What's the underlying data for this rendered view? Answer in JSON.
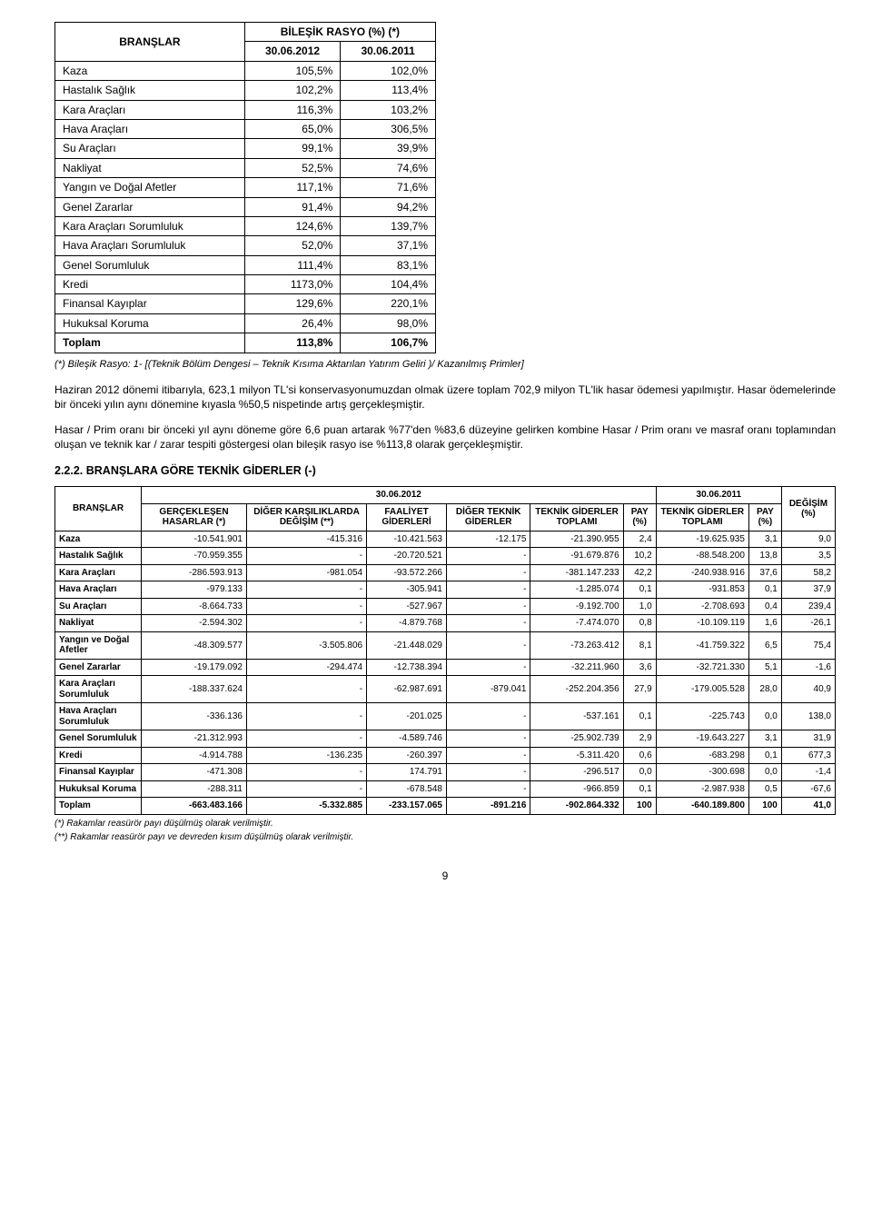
{
  "table1": {
    "header_branslar": "BRANŞLAR",
    "header_rasyo": "BİLEŞİK RASYO (%) (*)",
    "date1": "30.06.2012",
    "date2": "30.06.2011",
    "rows": [
      {
        "label": "Kaza",
        "v1": "105,5%",
        "v2": "102,0%",
        "bold": false
      },
      {
        "label": "Hastalık Sağlık",
        "v1": "102,2%",
        "v2": "113,4%",
        "bold": false
      },
      {
        "label": "Kara Araçları",
        "v1": "116,3%",
        "v2": "103,2%",
        "bold": false
      },
      {
        "label": "Hava Araçları",
        "v1": "65,0%",
        "v2": "306,5%",
        "bold": false
      },
      {
        "label": "Su Araçları",
        "v1": "99,1%",
        "v2": "39,9%",
        "bold": false
      },
      {
        "label": "Nakliyat",
        "v1": "52,5%",
        "v2": "74,6%",
        "bold": false
      },
      {
        "label": "Yangın ve Doğal Afetler",
        "v1": "117,1%",
        "v2": "71,6%",
        "bold": false
      },
      {
        "label": "Genel Zararlar",
        "v1": "91,4%",
        "v2": "94,2%",
        "bold": false
      },
      {
        "label": "Kara Araçları Sorumluluk",
        "v1": "124,6%",
        "v2": "139,7%",
        "bold": false
      },
      {
        "label": "Hava Araçları Sorumluluk",
        "v1": "52,0%",
        "v2": "37,1%",
        "bold": false
      },
      {
        "label": "Genel Sorumluluk",
        "v1": "111,4%",
        "v2": "83,1%",
        "bold": false
      },
      {
        "label": "Kredi",
        "v1": "1173,0%",
        "v2": "104,4%",
        "bold": false
      },
      {
        "label": "Finansal Kayıplar",
        "v1": "129,6%",
        "v2": "220,1%",
        "bold": false
      },
      {
        "label": "Hukuksal Koruma",
        "v1": "26,4%",
        "v2": "98,0%",
        "bold": false
      },
      {
        "label": "Toplam",
        "v1": "113,8%",
        "v2": "106,7%",
        "bold": true
      }
    ],
    "footnote": "(*) Bileşik Rasyo: 1- [(Teknik Bölüm Dengesi – Teknik Kısıma Aktarılan Yatırım Geliri )/ Kazanılmış Primler]"
  },
  "para1": "Haziran 2012 dönemi itibarıyla, 623,1 milyon TL'si konservasyonumuzdan olmak üzere toplam 702,9 milyon TL'lik hasar ödemesi yapılmıştır. Hasar ödemelerinde bir önceki yılın aynı dönemine kıyasla %50,5 nispetinde artış gerçekleşmiştir.",
  "para2": "Hasar / Prim oranı bir önceki yıl aynı döneme göre 6,6 puan artarak %77'den %83,6 düzeyine gelirken kombine Hasar / Prim oranı ve masraf oranı toplamından oluşan ve teknik kar / zarar tespiti göstergesi olan bileşik rasyo ise %113,8 olarak gerçekleşmiştir.",
  "section_title": "2.2.2. BRANŞLARA GÖRE TEKNİK GİDERLER (-)",
  "table2": {
    "h_branslar": "BRANŞLAR",
    "h_date1": "30.06.2012",
    "h_date2": "30.06.2011",
    "h_c1": "GERÇEKLEŞEN HASARLAR (*)",
    "h_c2": "DİĞER KARŞILIKLARDA DEĞİŞİM (**)",
    "h_c3": "FAALİYET GİDERLERİ",
    "h_c4": "DİĞER TEKNİK GİDERLER",
    "h_c5": "TEKNİK GİDERLER TOPLAMI",
    "h_c6": "PAY (%)",
    "h_c7": "TEKNİK GİDERLER TOPLAMI",
    "h_c8": "PAY (%)",
    "h_c9": "DEĞİŞİM (%)",
    "rows": [
      {
        "label": "Kaza",
        "c": [
          "-10.541.901",
          "-415.316",
          "-10.421.563",
          "-12.175",
          "-21.390.955",
          "2,4",
          "-19.625.935",
          "3,1",
          "9,0"
        ]
      },
      {
        "label": "Hastalık Sağlık",
        "c": [
          "-70.959.355",
          "-",
          "-20.720.521",
          "-",
          "-91.679.876",
          "10,2",
          "-88.548.200",
          "13,8",
          "3,5"
        ]
      },
      {
        "label": "Kara Araçları",
        "c": [
          "-286.593.913",
          "-981.054",
          "-93.572.266",
          "-",
          "-381.147.233",
          "42,2",
          "-240.938.916",
          "37,6",
          "58,2"
        ]
      },
      {
        "label": "Hava Araçları",
        "c": [
          "-979.133",
          "-",
          "-305.941",
          "-",
          "-1.285.074",
          "0,1",
          "-931.853",
          "0,1",
          "37,9"
        ]
      },
      {
        "label": "Su Araçları",
        "c": [
          "-8.664.733",
          "-",
          "-527.967",
          "-",
          "-9.192.700",
          "1,0",
          "-2.708.693",
          "0,4",
          "239,4"
        ]
      },
      {
        "label": "Nakliyat",
        "c": [
          "-2.594.302",
          "-",
          "-4.879.768",
          "-",
          "-7.474.070",
          "0,8",
          "-10.109.119",
          "1,6",
          "-26,1"
        ]
      },
      {
        "label": "Yangın ve Doğal Afetler",
        "c": [
          "-48.309.577",
          "-3.505.806",
          "-21.448.029",
          "-",
          "-73.263.412",
          "8,1",
          "-41.759.322",
          "6,5",
          "75,4"
        ]
      },
      {
        "label": "Genel Zararlar",
        "c": [
          "-19.179.092",
          "-294.474",
          "-12.738.394",
          "-",
          "-32.211.960",
          "3,6",
          "-32.721.330",
          "5,1",
          "-1,6"
        ]
      },
      {
        "label": "Kara Araçları Sorumluluk",
        "c": [
          "-188.337.624",
          "-",
          "-62.987.691",
          "-879.041",
          "-252.204.356",
          "27,9",
          "-179.005.528",
          "28,0",
          "40,9"
        ]
      },
      {
        "label": "Hava Araçları Sorumluluk",
        "c": [
          "-336.136",
          "-",
          "-201.025",
          "-",
          "-537.161",
          "0,1",
          "-225.743",
          "0,0",
          "138,0"
        ]
      },
      {
        "label": "Genel Sorumluluk",
        "c": [
          "-21.312.993",
          "-",
          "-4.589.746",
          "-",
          "-25.902.739",
          "2,9",
          "-19.643.227",
          "3,1",
          "31,9"
        ]
      },
      {
        "label": "Kredi",
        "c": [
          "-4.914.788",
          "-136.235",
          "-260.397",
          "-",
          "-5.311.420",
          "0,6",
          "-683.298",
          "0,1",
          "677,3"
        ]
      },
      {
        "label": "Finansal Kayıplar",
        "c": [
          "-471.308",
          "-",
          "174.791",
          "-",
          "-296.517",
          "0,0",
          "-300.698",
          "0,0",
          "-1,4"
        ]
      },
      {
        "label": "Hukuksal Koruma",
        "c": [
          "-288.311",
          "-",
          "-678.548",
          "-",
          "-966.859",
          "0,1",
          "-2.987.938",
          "0,5",
          "-67,6"
        ]
      }
    ],
    "total": {
      "label": "Toplam",
      "c": [
        "-663.483.166",
        "-5.332.885",
        "-233.157.065",
        "-891.216",
        "-902.864.332",
        "100",
        "-640.189.800",
        "100",
        "41,0"
      ]
    },
    "fn1": "(*) Rakamlar reasürör payı düşülmüş olarak verilmiştir.",
    "fn2": "(**) Rakamlar reasürör payı ve devreden kısım düşülmüş olarak verilmiştir."
  },
  "page_number": "9"
}
